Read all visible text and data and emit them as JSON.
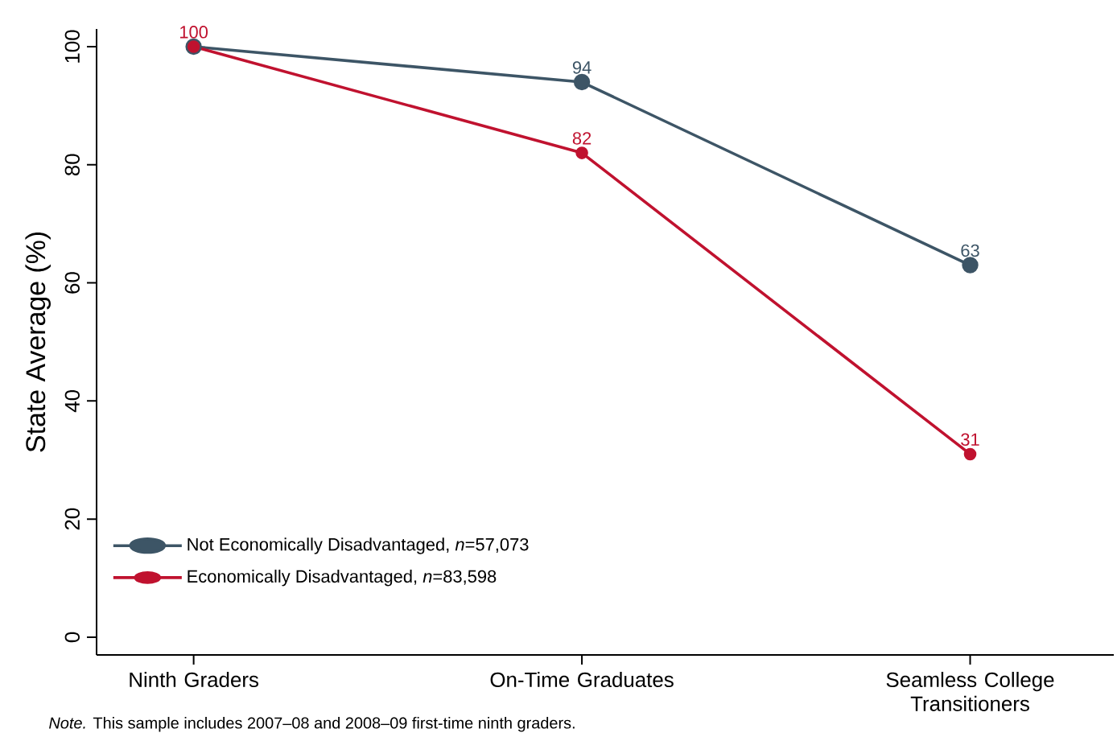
{
  "chart_data": {
    "type": "line",
    "ylabel": "State Average (%)",
    "categories": [
      "Ninth Graders",
      "On-Time Graduates",
      "Seamless College Transitioners"
    ],
    "series": [
      {
        "name": "Not Economically Disadvantaged, *n*=57,073",
        "color": "#3d5566",
        "values": [
          100,
          94,
          63
        ],
        "value_labels": [
          null,
          "94",
          "63"
        ]
      },
      {
        "name": "Economically Disadvantaged, *n*=83,598",
        "color": "#c0122f",
        "values": [
          100,
          82,
          31
        ],
        "value_labels": [
          "100",
          "82",
          "31"
        ]
      }
    ],
    "ylim": [
      -3,
      103
    ],
    "yticks": [
      0,
      20,
      40,
      60,
      80,
      100
    ],
    "grid": false,
    "legend": "bottom left",
    "marker": "circle",
    "line_style": "solid",
    "annotations": [
      "*Note.* This sample includes 2007–08 and 2008–09 first-time ninth graders."
    ]
  }
}
